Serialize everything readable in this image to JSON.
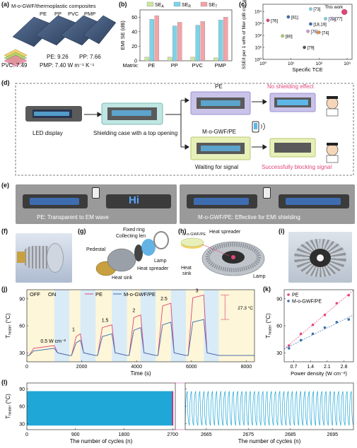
{
  "panel_a": {
    "label": "(a)",
    "title": "M-o-GWF/thermoplastic composites",
    "samples": [
      "PE",
      "PP",
      "PVC",
      "PMP"
    ],
    "values": {
      "pe": "PE: 9.26",
      "pp": "PP: 7.66",
      "pvc": "PVC: 7.49",
      "pmp": "PMP: 7.40 W m⁻¹ K⁻¹"
    }
  },
  "panel_b": {
    "label": "(b)",
    "legend": [
      "SEₐ",
      "SEᵣ",
      "SEₜ"
    ],
    "legend_main": "SE",
    "legend_subs": [
      "A",
      "R",
      "T"
    ],
    "ylabel": "EMI SE (dB)",
    "xprefix": "Matrix:",
    "yticks": [
      "0",
      "20",
      "40",
      "60"
    ]
  },
  "panel_c": {
    "label": "(c)",
    "ylabel": "SSE/t per 1 wt% of filler (dB cm² g⁻¹)",
    "xlabel": "Specific TCE",
    "yticks": [
      "10⁰",
      "10¹",
      "10²",
      "10³",
      "10⁴"
    ],
    "xticks": [
      "10⁰",
      "10¹",
      "10²",
      "10³"
    ],
    "annotation": "This work"
  },
  "panel_d": {
    "label": "(d)",
    "led_display": "LED display",
    "shield_case": "Shielding case with a top opening",
    "pe": "PE",
    "mogwf": "M-o-GWF/PE",
    "waiting": "Waiting for signal",
    "no_effect": "No shielding effect",
    "blocking": "Successfully blocking signal"
  },
  "panel_e": {
    "label": "(e)",
    "left_caption": "PE: Transparent to EM wave",
    "right_caption": "M-o-GWF/PE: Effective for EMI shielding",
    "hi": "Hi"
  },
  "panel_f": {
    "label": "(f)"
  },
  "panel_g": {
    "label": "(g)",
    "fixed_ring": "Fixed ring",
    "collecting_len": "Collecting len",
    "pedestal": "Pedestal",
    "lamp": "Lamp",
    "heat_spreader": "Heat spreader",
    "heat_sink": "Heat sink"
  },
  "panel_h": {
    "label": "(h)",
    "heat_spreader": "Heat spreader",
    "chip": "M-o-GWF/PE",
    "heat": "Heat",
    "sink": "sink",
    "lamp": "Lamp"
  },
  "panel_i": {
    "label": "(i)"
  },
  "panel_j": {
    "label": "(j)",
    "off": "OFF",
    "on": "ON",
    "ylabel": "T",
    "ylabel_sub": "heater",
    "ylabel_unit": "(°C)",
    "xlabel": "Time (s)",
    "legend": [
      "PE",
      "M-o-GWF/PE"
    ],
    "power_labels": [
      "0.5 W cm⁻²",
      "1",
      "1.5",
      "2",
      "2.5",
      "3"
    ],
    "delta": "27.3 °C",
    "xticks": [
      "0",
      "2000",
      "4000",
      "6000",
      "8000"
    ],
    "yticks": [
      "30",
      "60",
      "90"
    ]
  },
  "panel_k": {
    "label": "(k)",
    "ylabel": "T",
    "ylabel_sub": "heater",
    "ylabel_unit": "(°C)",
    "xlabel": "Power density (W cm⁻²)",
    "legend": [
      "PE",
      "M-o-GWF/PE"
    ],
    "xticks": [
      "0.7",
      "1.4",
      "2.1",
      "2.8"
    ],
    "yticks": [
      "30",
      "60",
      "90"
    ]
  },
  "panel_l": {
    "label": "(l)",
    "ylabel": "T",
    "ylabel_sub": "heater",
    "ylabel_unit": "(°C)",
    "xlabel": "The number of cycles (n)",
    "xticks_left": [
      "0",
      "900",
      "1800",
      "2700"
    ],
    "xticks_right": [
      "2665",
      "2675",
      "2685",
      "2695"
    ],
    "yticks": [
      "30",
      "60",
      "90"
    ]
  },
  "colors": {
    "se_a": "#c8e6a0",
    "se_r": "#7dd3e8",
    "se_t": "#f4a3a8",
    "pe": "#e0457b",
    "mogwf": "#3a6fb0",
    "on_band": "#fdf6d8",
    "off_band": "#d8ebf7",
    "cycle": "#1fa7d8"
  },
  "chart_data": [
    {
      "panel": "b",
      "type": "bar",
      "categories": [
        "PE",
        "PP",
        "PVC",
        "PMP"
      ],
      "series": [
        {
          "name": "SE_A",
          "values": [
            5,
            5,
            5,
            4
          ]
        },
        {
          "name": "SE_R",
          "values": [
            57,
            48,
            49,
            56
          ]
        },
        {
          "name": "SE_T",
          "values": [
            62,
            53,
            54,
            60
          ]
        }
      ],
      "ylabel": "EMI SE (dB)",
      "ylim": [
        0,
        70
      ]
    },
    {
      "panel": "c",
      "type": "scatter",
      "xscale": "log",
      "yscale": "log",
      "xlim": [
        1,
        1500
      ],
      "ylim": [
        1,
        40000
      ],
      "xlabel": "Specific TCE",
      "ylabel": "SSE/t per 1 wt% of filler (dB cm² g⁻¹)",
      "points": [
        {
          "label": "[76]",
          "x": 1.5,
          "y": 1800,
          "color": "#e0457b"
        },
        {
          "label": "[81]",
          "x": 8,
          "y": 3500,
          "color": "#3a6fb0"
        },
        {
          "label": "[80]",
          "x": 5,
          "y": 90,
          "color": "#a9cc6b"
        },
        {
          "label": "[18,19]",
          "x": 50,
          "y": 900,
          "color": "#3a6fb0"
        },
        {
          "label": "[73]",
          "x": 50,
          "y": 16000,
          "color": "#7dd3e8"
        },
        {
          "label": "[75]",
          "x": 40,
          "y": 220,
          "color": "#c79ad9"
        },
        {
          "label": "[74]",
          "x": 100,
          "y": 180,
          "color": "#e88a3a"
        },
        {
          "label": "[79]",
          "x": 30,
          "y": 10,
          "color": "#555555"
        },
        {
          "label": "[78]",
          "x": 170,
          "y": 2500,
          "color": "#7dd3e8"
        },
        {
          "label": "[77]",
          "x": 300,
          "y": 2600,
          "color": "#b5a0e0"
        },
        {
          "label": "This work",
          "x": 800,
          "y": 9000,
          "color": "#e0457b"
        }
      ]
    },
    {
      "panel": "j",
      "type": "line",
      "xlabel": "Time (s)",
      "xlim": [
        0,
        8300
      ],
      "ylim": [
        20,
        100
      ],
      "steps": [
        {
          "power": 0.5,
          "on": [
            1000,
            1550
          ],
          "pe": 38,
          "mogwf": 35
        },
        {
          "power": 1,
          "on": [
            1950,
            2500
          ],
          "pe": 51,
          "mogwf": 44
        },
        {
          "power": 1.5,
          "on": [
            3100,
            3650
          ],
          "pe": 61,
          "mogwf": 51
        },
        {
          "power": 2,
          "on": [
            4150,
            4700
          ],
          "pe": 72,
          "mogwf": 58
        },
        {
          "power": 2.5,
          "on": [
            5250,
            5800
          ],
          "pe": 85,
          "mogwf": 64
        },
        {
          "power": 3,
          "on": [
            6450,
            7000
          ],
          "pe": 94,
          "mogwf": 67
        }
      ],
      "baseline": 27
    },
    {
      "panel": "k",
      "type": "scatter",
      "xlabel": "Power density (W cm⁻²)",
      "series": [
        {
          "name": "PE",
          "x": [
            0.5,
            1.0,
            1.5,
            2.0,
            2.5,
            3.0
          ],
          "y": [
            38,
            51,
            61,
            72,
            85,
            94
          ]
        },
        {
          "name": "M-o-GWF/PE",
          "x": [
            0.5,
            1.0,
            1.5,
            2.0,
            2.5,
            3.0
          ],
          "y": [
            35,
            44,
            51,
            58,
            64,
            67
          ]
        }
      ],
      "xlim": [
        0.3,
        3.2
      ],
      "ylim": [
        20,
        100
      ]
    },
    {
      "panel": "l",
      "type": "line",
      "xlabel": "The number of cycles (n)",
      "left_xlim": [
        0,
        2750
      ],
      "right_xlim": [
        2660,
        2700
      ],
      "ylim": [
        20,
        100
      ],
      "low": 27,
      "high": 86
    }
  ]
}
